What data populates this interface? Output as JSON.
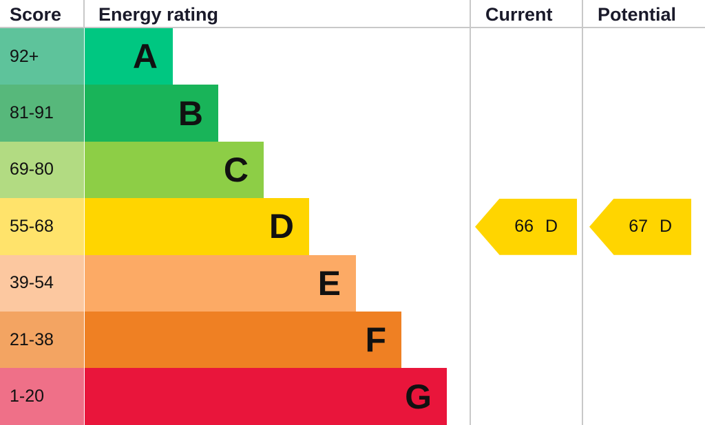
{
  "chart_data": {
    "type": "table",
    "headers": {
      "score": "Score",
      "rating": "Energy rating",
      "current": "Current",
      "potential": "Potential"
    },
    "bands": [
      {
        "letter": "A",
        "range": "92+",
        "color": "#00c781",
        "score_color": "#5ec39b"
      },
      {
        "letter": "B",
        "range": "81-91",
        "color": "#19b459",
        "score_color": "#57b87b"
      },
      {
        "letter": "C",
        "range": "69-80",
        "color": "#8dce46",
        "score_color": "#b2db82"
      },
      {
        "letter": "D",
        "range": "55-68",
        "color": "#ffd500",
        "score_color": "#ffe36b"
      },
      {
        "letter": "E",
        "range": "39-54",
        "color": "#fcaa65",
        "score_color": "#fcc8a0"
      },
      {
        "letter": "F",
        "range": "21-38",
        "color": "#ef8023",
        "score_color": "#f3a462"
      },
      {
        "letter": "G",
        "range": "1-20",
        "color": "#e9153b",
        "score_color": "#ef7088"
      }
    ],
    "current": {
      "value": 66,
      "band": "D",
      "label": "66 D"
    },
    "potential": {
      "value": 67,
      "band": "D",
      "label": "67 D"
    }
  }
}
